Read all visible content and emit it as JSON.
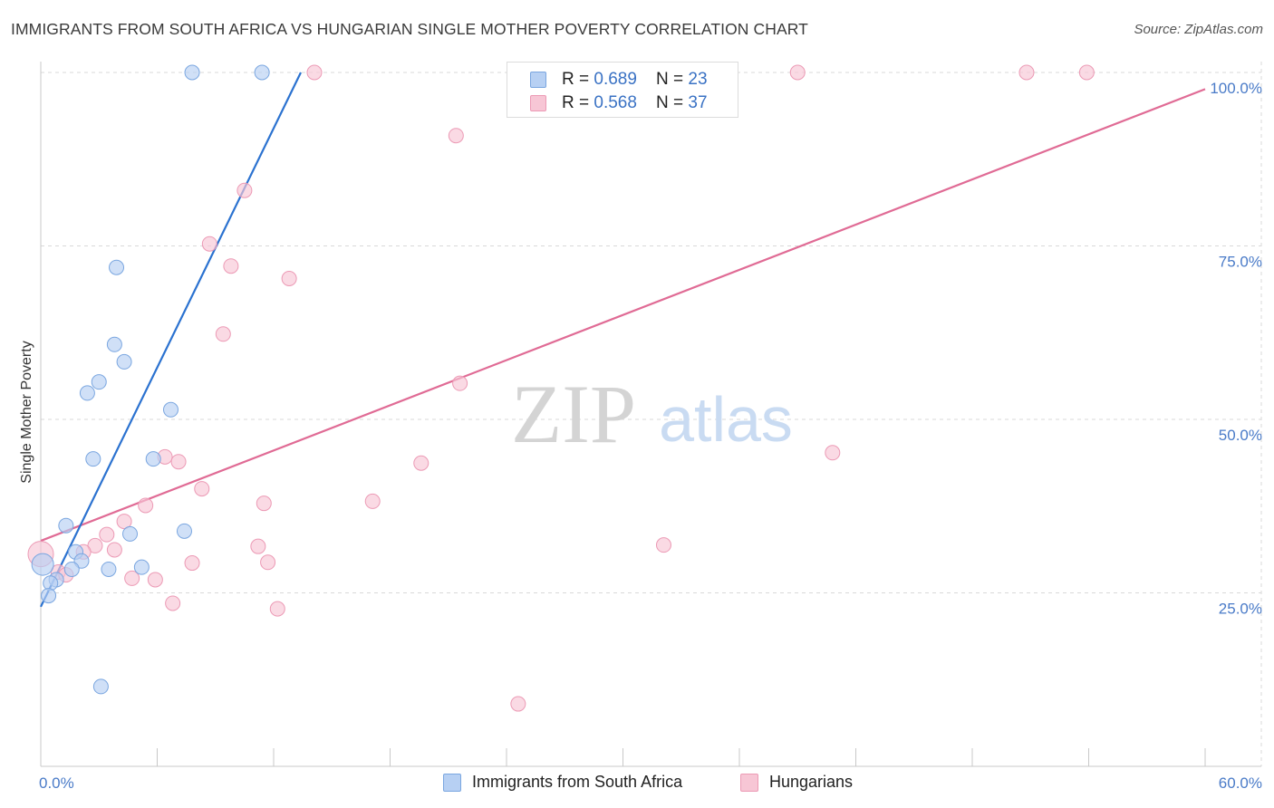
{
  "title": "IMMIGRANTS FROM SOUTH AFRICA VS HUNGARIAN SINGLE MOTHER POVERTY CORRELATION CHART",
  "source": "Source: ZipAtlas.com",
  "watermark": {
    "zip": "ZIP",
    "atlas": "atlas"
  },
  "colors": {
    "blue_fill": "#b7d0f3",
    "blue_stroke": "#7aa6e0",
    "blue_line": "#2b72d0",
    "pink_fill": "#f7c6d5",
    "pink_stroke": "#ec9ab5",
    "pink_line": "#e06b95",
    "tick": "#4a7bc8",
    "grid": "#d9d9d9"
  },
  "legend": {
    "rows": [
      {
        "r_label": "R = ",
        "r_value": "0.689",
        "n_label": "N = ",
        "n_value": "23"
      },
      {
        "r_label": "R = ",
        "r_value": "0.568",
        "n_label": "N = ",
        "n_value": "37"
      }
    ]
  },
  "bottom_legend": {
    "series1": "Immigrants from South Africa",
    "series2": "Hungarians"
  },
  "chart_data": {
    "type": "scatter",
    "title": "IMMIGRANTS FROM SOUTH AFRICA VS HUNGARIAN SINGLE MOTHER POVERTY CORRELATION CHART",
    "xlabel": "",
    "ylabel": "Single Mother Poverty",
    "xlim": [
      0,
      60
    ],
    "ylim": [
      0,
      100
    ],
    "x_ticks": [
      "0.0%",
      "60.0%"
    ],
    "y_ticks": [
      {
        "value": 25,
        "label": "25.0%"
      },
      {
        "value": 50,
        "label": "50.0%"
      },
      {
        "value": 75,
        "label": "75.0%"
      },
      {
        "value": 100,
        "label": "100.0%"
      }
    ],
    "series": [
      {
        "name": "Immigrants from South Africa",
        "R": 0.689,
        "N": 23,
        "trend": {
          "x": [
            0.0,
            13.4
          ],
          "y": [
            23.0,
            100.0
          ]
        },
        "points": [
          {
            "x": 7.8,
            "y": 100.0
          },
          {
            "x": 11.4,
            "y": 100.0
          },
          {
            "x": 3.9,
            "y": 71.9
          },
          {
            "x": 3.8,
            "y": 60.8
          },
          {
            "x": 4.3,
            "y": 58.3
          },
          {
            "x": 3.0,
            "y": 55.4
          },
          {
            "x": 2.4,
            "y": 53.8
          },
          {
            "x": 6.7,
            "y": 51.4
          },
          {
            "x": 2.7,
            "y": 44.3
          },
          {
            "x": 5.8,
            "y": 44.3
          },
          {
            "x": 1.3,
            "y": 34.7
          },
          {
            "x": 7.4,
            "y": 33.9
          },
          {
            "x": 4.6,
            "y": 33.5
          },
          {
            "x": 1.8,
            "y": 30.9
          },
          {
            "x": 2.1,
            "y": 29.6
          },
          {
            "x": 0.1,
            "y": 29.1
          },
          {
            "x": 1.6,
            "y": 28.4
          },
          {
            "x": 3.5,
            "y": 28.4
          },
          {
            "x": 5.2,
            "y": 28.7
          },
          {
            "x": 0.8,
            "y": 26.9
          },
          {
            "x": 0.5,
            "y": 26.4
          },
          {
            "x": 0.4,
            "y": 24.6
          },
          {
            "x": 3.1,
            "y": 11.5
          }
        ]
      },
      {
        "name": "Hungarians",
        "R": 0.568,
        "N": 37,
        "trend": {
          "x": [
            0.0,
            60.0
          ],
          "y": [
            32.5,
            97.6
          ]
        },
        "points": [
          {
            "x": 14.1,
            "y": 100.0
          },
          {
            "x": 39.0,
            "y": 100.0
          },
          {
            "x": 50.8,
            "y": 100.0
          },
          {
            "x": 53.9,
            "y": 100.0
          },
          {
            "x": 21.4,
            "y": 90.9
          },
          {
            "x": 10.5,
            "y": 83.0
          },
          {
            "x": 8.7,
            "y": 75.3
          },
          {
            "x": 9.8,
            "y": 72.1
          },
          {
            "x": 12.8,
            "y": 70.3
          },
          {
            "x": 9.4,
            "y": 62.3
          },
          {
            "x": 21.6,
            "y": 55.2
          },
          {
            "x": 40.8,
            "y": 45.2
          },
          {
            "x": 6.4,
            "y": 44.6
          },
          {
            "x": 7.1,
            "y": 43.9
          },
          {
            "x": 19.6,
            "y": 43.7
          },
          {
            "x": 8.3,
            "y": 40.0
          },
          {
            "x": 5.4,
            "y": 37.6
          },
          {
            "x": 11.5,
            "y": 37.9
          },
          {
            "x": 17.1,
            "y": 38.2
          },
          {
            "x": 4.3,
            "y": 35.3
          },
          {
            "x": 3.4,
            "y": 33.4
          },
          {
            "x": 2.8,
            "y": 31.8
          },
          {
            "x": 3.8,
            "y": 31.2
          },
          {
            "x": 11.2,
            "y": 31.7
          },
          {
            "x": 32.1,
            "y": 31.9
          },
          {
            "x": 2.2,
            "y": 30.9
          },
          {
            "x": 0.0,
            "y": 30.6
          },
          {
            "x": 7.8,
            "y": 29.3
          },
          {
            "x": 11.7,
            "y": 29.4
          },
          {
            "x": 0.9,
            "y": 28.0
          },
          {
            "x": 1.3,
            "y": 27.6
          },
          {
            "x": 4.7,
            "y": 27.1
          },
          {
            "x": 5.9,
            "y": 26.9
          },
          {
            "x": 6.8,
            "y": 23.5
          },
          {
            "x": 12.2,
            "y": 22.7
          },
          {
            "x": 24.6,
            "y": 9.0
          },
          {
            "x": 2.2,
            "y": 30.2
          }
        ]
      }
    ]
  }
}
